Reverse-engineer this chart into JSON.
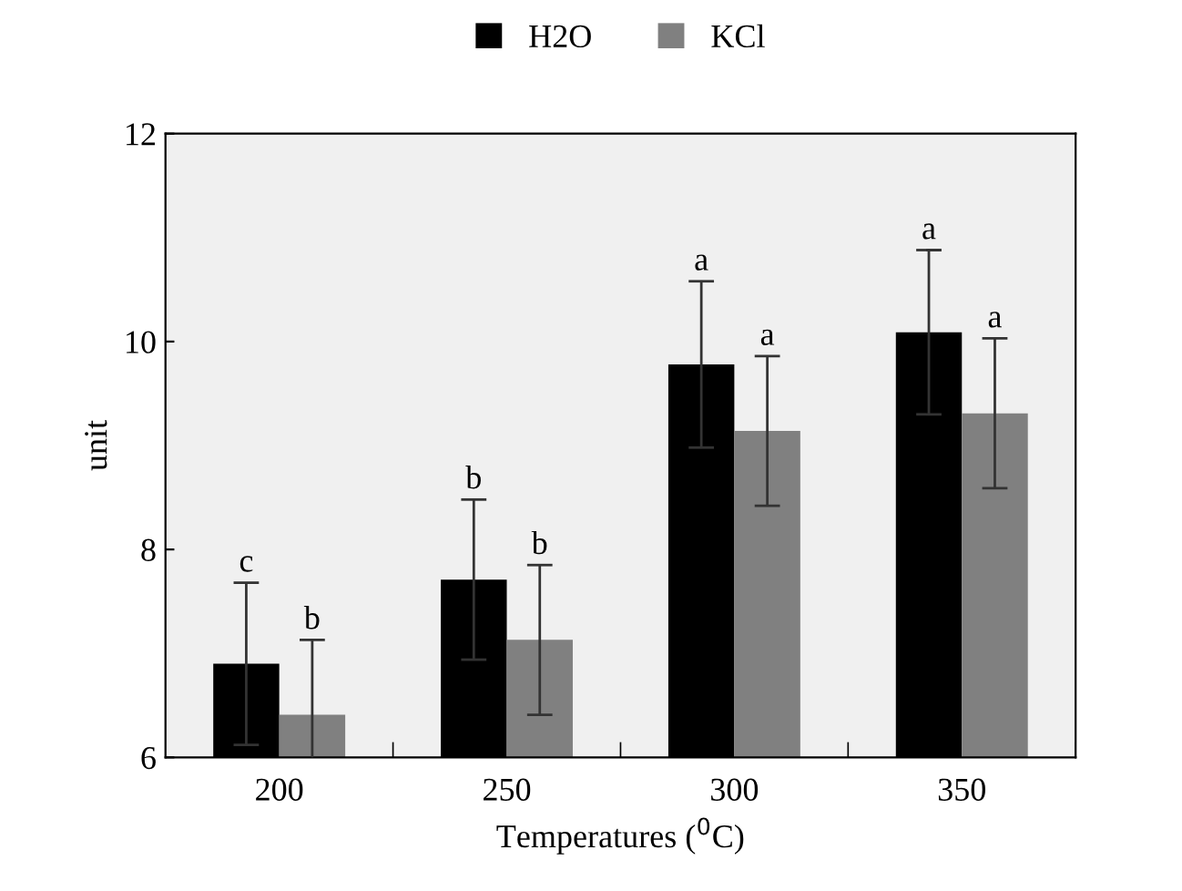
{
  "chart_data": {
    "type": "bar",
    "xlabel": "Temperatures ($^{0}$C)",
    "ylabel": "unit",
    "categories": [
      "200",
      "250",
      "300",
      "350"
    ],
    "series": [
      {
        "name": "H2O",
        "color": "#000000",
        "values": [
          6.9,
          7.71,
          9.78,
          10.09
        ],
        "errors": [
          0.78,
          0.77,
          0.8,
          0.79
        ],
        "value_labels": [
          "c",
          "b",
          "a",
          "a"
        ]
      },
      {
        "name": "KCl",
        "color": "#808080",
        "values": [
          6.41,
          7.13,
          9.14,
          9.31
        ],
        "errors": [
          0.72,
          0.72,
          0.72,
          0.72
        ],
        "value_labels": [
          "b",
          "b",
          "a",
          "a"
        ]
      }
    ],
    "ylim": [
      6,
      12
    ],
    "yticks": [
      6,
      8,
      10,
      12
    ],
    "grid": false,
    "legend": "top"
  }
}
